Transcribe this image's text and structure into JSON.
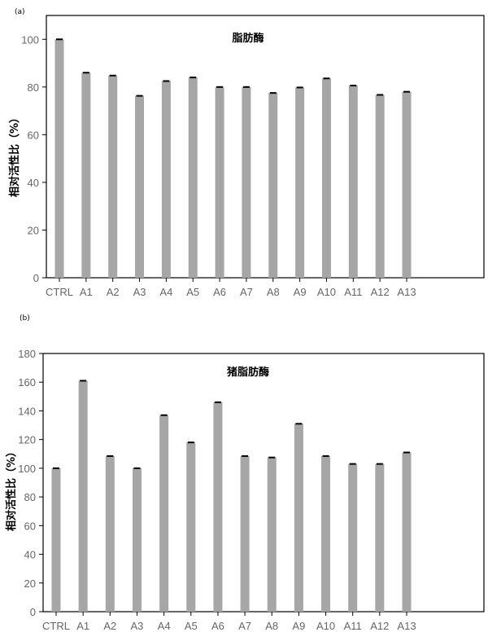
{
  "chart_data": [
    {
      "type": "bar",
      "panel_label": "(a)",
      "title": "脂肪酶",
      "xlabel": "",
      "ylabel": "相对活性比（%）",
      "categories": [
        "CTRL",
        "A1",
        "A2",
        "A3",
        "A4",
        "A5",
        "A6",
        "A7",
        "A8",
        "A9",
        "A10",
        "A11",
        "A12",
        "A13"
      ],
      "values": [
        100,
        86,
        84.8,
        76.3,
        82.5,
        84,
        80,
        80,
        77.5,
        79.8,
        83.6,
        80.6,
        76.7,
        78
      ],
      "ylim": [
        0,
        110
      ],
      "yticks": [
        0,
        20,
        40,
        60,
        80,
        100
      ],
      "error_bars": true,
      "grid": false,
      "bar_color": "#a6a6a6"
    },
    {
      "type": "bar",
      "panel_label": "(b)",
      "title": "猪脂肪酶",
      "xlabel": "",
      "ylabel": "相对活性比（%）",
      "categories": [
        "CTRL",
        "A1",
        "A2",
        "A3",
        "A4",
        "A5",
        "A6",
        "A7",
        "A8",
        "A9",
        "A10",
        "A11",
        "A12",
        "A13"
      ],
      "values": [
        100,
        161,
        108.5,
        100,
        137,
        118,
        146,
        108.5,
        107.5,
        131,
        108.5,
        103,
        103,
        111
      ],
      "ylim": [
        0,
        180
      ],
      "yticks": [
        0,
        20,
        40,
        60,
        80,
        100,
        120,
        140,
        160,
        180
      ],
      "error_bars": true,
      "grid": false,
      "bar_color": "#a6a6a6"
    }
  ]
}
